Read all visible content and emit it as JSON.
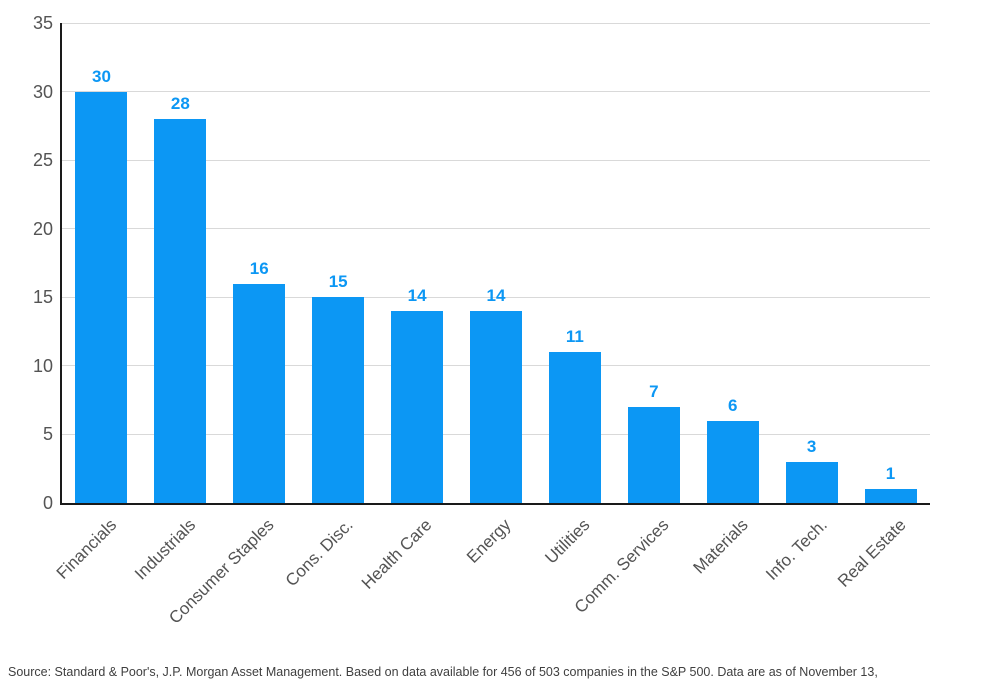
{
  "chart_data": {
    "type": "bar",
    "title": "",
    "xlabel": "",
    "ylabel": "",
    "categories": [
      "Financials",
      "Industrials",
      "Consumer Staples",
      "Cons. Disc.",
      "Health Care",
      "Energy",
      "Utilities",
      "Comm. Services",
      "Materials",
      "Info. Tech.",
      "Real Estate"
    ],
    "values": [
      30,
      28,
      16,
      15,
      14,
      14,
      11,
      7,
      6,
      3,
      1
    ],
    "ylim": [
      0,
      35
    ],
    "yticks": [
      0,
      5,
      10,
      15,
      20,
      25,
      30,
      35
    ],
    "grid": true,
    "legend": false,
    "value_labels_shown": true,
    "bar_color": "#0c97f4",
    "value_label_color": "#0c97f4",
    "gridline_color": "#d9d9d9",
    "axis_color": "#1a1a1a",
    "tick_label_color": "#545454"
  },
  "footer": {
    "source": "Source: Standard & Poor's, J.P. Morgan Asset Management. Based on data available for 456 of 503 companies in the S&P 500. Data are as of November 13,"
  }
}
